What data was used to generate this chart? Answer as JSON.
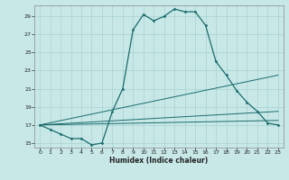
{
  "xlabel": "Humidex (Indice chaleur)",
  "ylabel": "",
  "bg_color": "#c8e8e8",
  "line_color": "#1a6b6b",
  "grid_color": "#a8d0d0",
  "xlim": [
    -0.5,
    23.5
  ],
  "ylim": [
    14.5,
    30.2
  ],
  "yticks": [
    15,
    17,
    19,
    21,
    23,
    25,
    27,
    29
  ],
  "xticks": [
    0,
    1,
    2,
    3,
    4,
    5,
    6,
    7,
    8,
    9,
    10,
    11,
    12,
    13,
    14,
    15,
    16,
    17,
    18,
    19,
    20,
    21,
    22,
    23
  ],
  "line1_x": [
    0,
    1,
    2,
    3,
    4,
    5,
    6,
    7,
    8,
    9,
    10,
    11,
    12,
    13,
    14,
    15,
    16,
    17,
    18,
    19,
    20,
    21,
    22,
    23
  ],
  "line1_y": [
    17.0,
    16.5,
    16.0,
    15.5,
    15.5,
    14.8,
    15.0,
    18.5,
    21.0,
    27.5,
    29.2,
    28.5,
    29.0,
    29.8,
    29.5,
    29.5,
    28.0,
    24.0,
    22.5,
    20.8,
    19.5,
    18.5,
    17.2,
    17.0
  ],
  "line2_x": [
    0,
    23
  ],
  "line2_y": [
    17.0,
    22.5
  ],
  "line3_x": [
    0,
    23
  ],
  "line3_y": [
    17.0,
    18.5
  ],
  "line4_x": [
    0,
    23
  ],
  "line4_y": [
    17.0,
    17.5
  ]
}
